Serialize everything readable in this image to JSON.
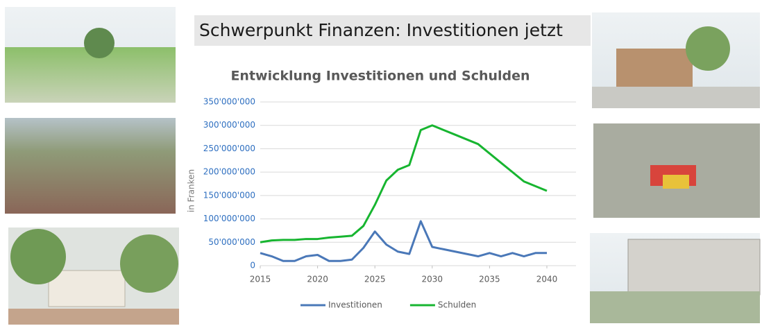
{
  "header": {
    "title": "Schwerpunkt Finanzen: Investitionen jetzt"
  },
  "chart_data": {
    "type": "line",
    "title": "Entwicklung Investitionen und Schulden",
    "y_label": "in Franken",
    "x": [
      2015,
      2016,
      2017,
      2018,
      2019,
      2020,
      2021,
      2022,
      2023,
      2024,
      2025,
      2026,
      2027,
      2028,
      2029,
      2030,
      2031,
      2032,
      2033,
      2034,
      2035,
      2036,
      2037,
      2038,
      2039,
      2040
    ],
    "series": [
      {
        "name": "Investitionen",
        "color": "#4a78b8",
        "values": [
          27000000,
          20000000,
          10000000,
          10000000,
          20000000,
          23000000,
          10000000,
          10000000,
          13000000,
          38000000,
          73000000,
          45000000,
          30000000,
          25000000,
          95000000,
          40000000,
          35000000,
          30000000,
          25000000,
          20000000,
          27000000,
          20000000,
          27000000,
          20000000,
          27000000,
          27000000
        ]
      },
      {
        "name": "Schulden",
        "color": "#17b530",
        "values": [
          50000000,
          54000000,
          55000000,
          55000000,
          57000000,
          57000000,
          60000000,
          62000000,
          64000000,
          85000000,
          130000000,
          182000000,
          205000000,
          215000000,
          290000000,
          300000000,
          290000000,
          280000000,
          270000000,
          260000000,
          240000000,
          220000000,
          200000000,
          180000000,
          170000000,
          160000000
        ]
      }
    ],
    "xlim": [
      2015,
      2040
    ],
    "xticks": [
      2015,
      2020,
      2025,
      2030,
      2035,
      2040
    ],
    "ylim": [
      0,
      350000000
    ],
    "yticks": [
      0,
      {
        "value": 50000000,
        "label": "50'000'000"
      },
      {
        "value": 100000000,
        "label": "100'000'000"
      },
      {
        "value": 150000000,
        "label": "150'000'000"
      },
      {
        "value": 200000000,
        "label": "200'000'000"
      },
      {
        "value": 250000000,
        "label": "250'000'000"
      },
      {
        "value": 300000000,
        "label": "300'000'000"
      },
      {
        "value": 350000000,
        "label": "350'000'000"
      }
    ],
    "grid": true,
    "legend": "bottom"
  }
}
